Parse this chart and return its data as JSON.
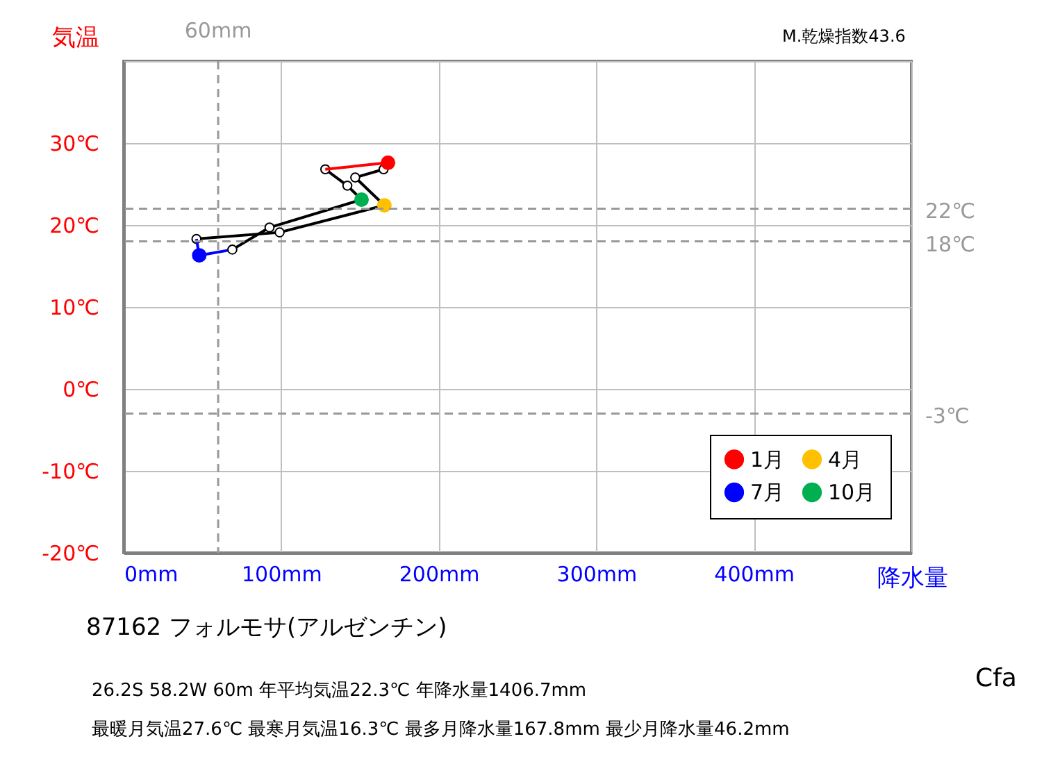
{
  "chart_data": {
    "type": "line",
    "title": "87162  フォルモサ(アルゼンチン)",
    "xlabel": "降水量",
    "ylabel": "気温",
    "annotations": [
      "M.乾燥指数43.6",
      "26.2S  58.2W 60m  年平均気温22.3℃ 年降水量1406.7mm",
      "最暖月気温27.6℃ 最寒月気温16.3℃ 最多月降水量167.8mm 最少月降水量46.2mm",
      "Cfa"
    ],
    "xlim": [
      0,
      500
    ],
    "xticks": [
      {
        "value": 0,
        "label": "0mm"
      },
      {
        "value": 100,
        "label": "100mm"
      },
      {
        "value": 200,
        "label": "200mm"
      },
      {
        "value": 300,
        "label": "300mm"
      },
      {
        "value": 400,
        "label": "400mm"
      },
      {
        "value": 500,
        "label": null
      }
    ],
    "ylim": [
      -20,
      40
    ],
    "yticks": [
      {
        "value": -20,
        "label": "-20℃"
      },
      {
        "value": -10,
        "label": "-10℃"
      },
      {
        "value": 0,
        "label": "0℃"
      },
      {
        "value": 10,
        "label": "10℃"
      },
      {
        "value": 20,
        "label": "20℃"
      },
      {
        "value": 30,
        "label": "30℃"
      },
      {
        "value": 40,
        "label": null
      }
    ],
    "grid": true,
    "legend": "bottom right",
    "marker": "circle",
    "series": [
      {
        "type": "line",
        "color": "#000000",
        "x": [
          167.8,
          165,
          147,
          165.5,
          99,
          46.2
        ],
        "values": [
          27.6,
          26.8,
          25.8,
          22.4,
          19.1,
          18.3
        ]
      },
      {
        "color": "#0000ff",
        "marker": "none",
        "x": [
          46.2,
          48,
          69
        ],
        "values": [
          18.3,
          16.3,
          17.0
        ]
      },
      {
        "color": "#000000",
        "x": [
          69,
          92.6,
          151,
          142,
          128
        ],
        "values": [
          17.0,
          19.7,
          23.1,
          24.8,
          26.8
        ]
      },
      {
        "color": "#ff0000",
        "marker": "none",
        "x": [
          128,
          167.8
        ],
        "values": [
          26.8,
          27.6
        ]
      },
      {
        "type": "scatter",
        "name": "1月",
        "color": "#ff0000",
        "x": [
          167.8
        ],
        "values": [
          27.6
        ]
      },
      {
        "type": "scatter",
        "name": "4月",
        "color": "#ffc000",
        "x": [
          165.5
        ],
        "values": [
          22.4
        ]
      },
      {
        "type": "scatter",
        "name": "7月",
        "color": "#0000ff",
        "x": [
          48
        ],
        "values": [
          16.3
        ]
      },
      {
        "type": "scatter",
        "name": "10月",
        "color": "#00b050",
        "x": [
          151
        ],
        "values": [
          23.1
        ]
      }
    ],
    "ref_lines": [
      {
        "axis": "x",
        "value": 60,
        "label": "60mm",
        "color": "#999999",
        "line_style": "dashed"
      },
      {
        "axis": "y",
        "value": 22,
        "label": "22℃",
        "color": "#999999",
        "line_style": "dashed"
      },
      {
        "axis": "y",
        "value": 18,
        "label": "18℃",
        "color": "#999999",
        "line_style": "dashed"
      },
      {
        "axis": "y",
        "value": -3,
        "label": "-3℃",
        "color": "#999999",
        "line_style": "dashed"
      }
    ]
  }
}
